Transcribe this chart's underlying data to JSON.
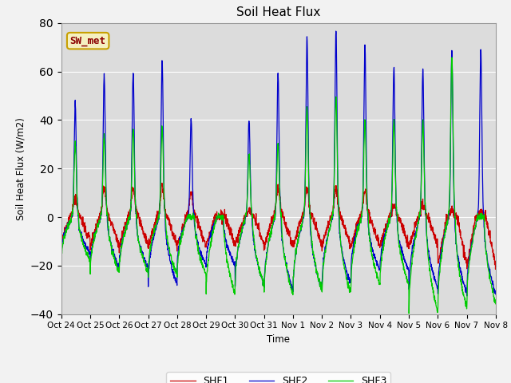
{
  "title": "Soil Heat Flux",
  "ylabel": "Soil Heat Flux (W/m2)",
  "xlabel": "Time",
  "ylim": [
    -40,
    80
  ],
  "yticks": [
    -40,
    -20,
    0,
    20,
    40,
    60,
    80
  ],
  "xtick_labels": [
    "Oct 24",
    "Oct 25",
    "Oct 26",
    "Oct 27",
    "Oct 28",
    "Oct 29",
    "Oct 30",
    "Oct 31",
    "Nov 1",
    "Nov 2",
    "Nov 3",
    "Nov 4",
    "Nov 5",
    "Nov 6",
    "Nov 7",
    "Nov 8"
  ],
  "annotation": "SW_met",
  "colors": {
    "SHF1": "#cc0000",
    "SHF2": "#0000cc",
    "SHF3": "#00cc00"
  },
  "bg_color": "#dcdcdc",
  "shf2_peaks": [
    47,
    58,
    60,
    65,
    41,
    0,
    40,
    59,
    74,
    77,
    71,
    62,
    61,
    68,
    69
  ],
  "shf3_peaks": [
    30,
    33,
    37,
    37,
    0,
    0,
    26,
    30,
    45,
    50,
    40,
    40,
    40,
    65,
    0
  ],
  "shf1_peaks": [
    8,
    12,
    12,
    13,
    10,
    0,
    3,
    12,
    12,
    12,
    11,
    5,
    5,
    3,
    2
  ],
  "shf2_troughs": [
    -15,
    -21,
    -21,
    -28,
    -20,
    -20,
    -28,
    -30,
    -30,
    -28,
    -22,
    -22,
    -30,
    -32,
    -32
  ],
  "shf3_troughs": [
    -18,
    -23,
    -23,
    -24,
    -24,
    -32,
    -28,
    -32,
    -30,
    -32,
    -28,
    -28,
    -40,
    -38,
    -36
  ],
  "shf1_night": [
    -10,
    -12,
    -12,
    -12,
    -12,
    -12,
    -12,
    -12,
    -12,
    -12,
    -12,
    -12,
    -12,
    -20,
    -20
  ]
}
